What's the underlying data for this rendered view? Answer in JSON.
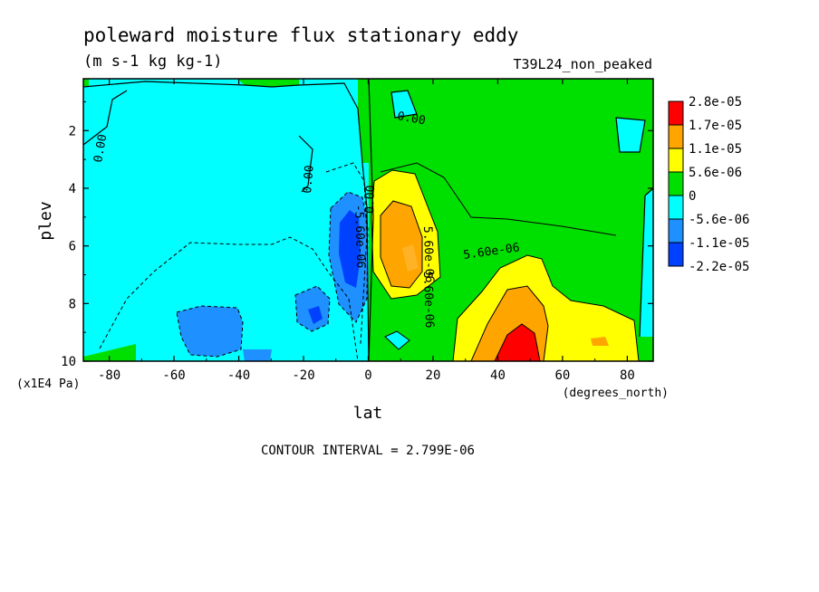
{
  "chart_data": {
    "type": "heatmap",
    "title": "poleward moisture flux stationary eddy",
    "units": "(m s-1 kg kg-1)",
    "dataset": "T39L24_non_peaked",
    "xlabel": "lat",
    "xunits": "(degrees_north)",
    "ylabel": "plev",
    "yunits": "(x1E4 Pa)",
    "xlim": [
      -88,
      88
    ],
    "ylim": [
      10,
      0.2
    ],
    "y_inverted": true,
    "x_ticks": [
      "-80",
      "-60",
      "-40",
      "-20",
      "0",
      "20",
      "40",
      "60",
      "80"
    ],
    "x_tick_values": [
      -80,
      -60,
      -40,
      -20,
      0,
      20,
      40,
      60,
      80
    ],
    "y_ticks": [
      "2",
      "4",
      "6",
      "8",
      "10"
    ],
    "y_tick_values": [
      2,
      4,
      6,
      8,
      10
    ],
    "contour_interval": "CONTOUR INTERVAL = 2.799E-06",
    "colorbar": {
      "labels": [
        "2.8e-05",
        "1.7e-05",
        "1.1e-05",
        "5.6e-06",
        "0",
        "-5.6e-06",
        "-1.1e-05",
        "-2.2e-05"
      ],
      "colors": [
        "#ff0000",
        "#ffa500",
        "#ffff00",
        "#00e000",
        "#00ffff",
        "#1e90ff",
        "#0040ff"
      ]
    },
    "contour_labels": [
      "0.00",
      "0.00",
      "0.00",
      "0.00",
      "-5.60e-06",
      "5.60e-06",
      "5.60e-06",
      "5.60e-06"
    ],
    "regions": [
      {
        "level": "negative",
        "color": "#00ffff",
        "lat": [
          -88,
          0
        ],
        "plev": [
          0.2,
          10
        ]
      },
      {
        "level": "positive",
        "color": "#00e000",
        "lat": [
          0,
          88
        ],
        "plev": [
          0.2,
          10
        ]
      },
      {
        "level": "strong negative",
        "color": "#1e90ff",
        "lat": [
          -9,
          -2
        ],
        "plev": [
          4,
          8
        ]
      },
      {
        "level": "min",
        "color": "#0040ff",
        "lat": [
          -8,
          -4
        ],
        "plev": [
          4.5,
          7
        ]
      },
      {
        "level": "weak positive",
        "color": "#ffff00",
        "lat": [
          5,
          22
        ],
        "plev": [
          4,
          8
        ]
      },
      {
        "level": "moderate positive",
        "color": "#ffa500",
        "lat": [
          6,
          16
        ],
        "plev": [
          4.8,
          7.8
        ]
      },
      {
        "level": "max",
        "color": "#ff0000",
        "lat": [
          38,
          52
        ],
        "plev": [
          8.8,
          10
        ]
      }
    ]
  }
}
